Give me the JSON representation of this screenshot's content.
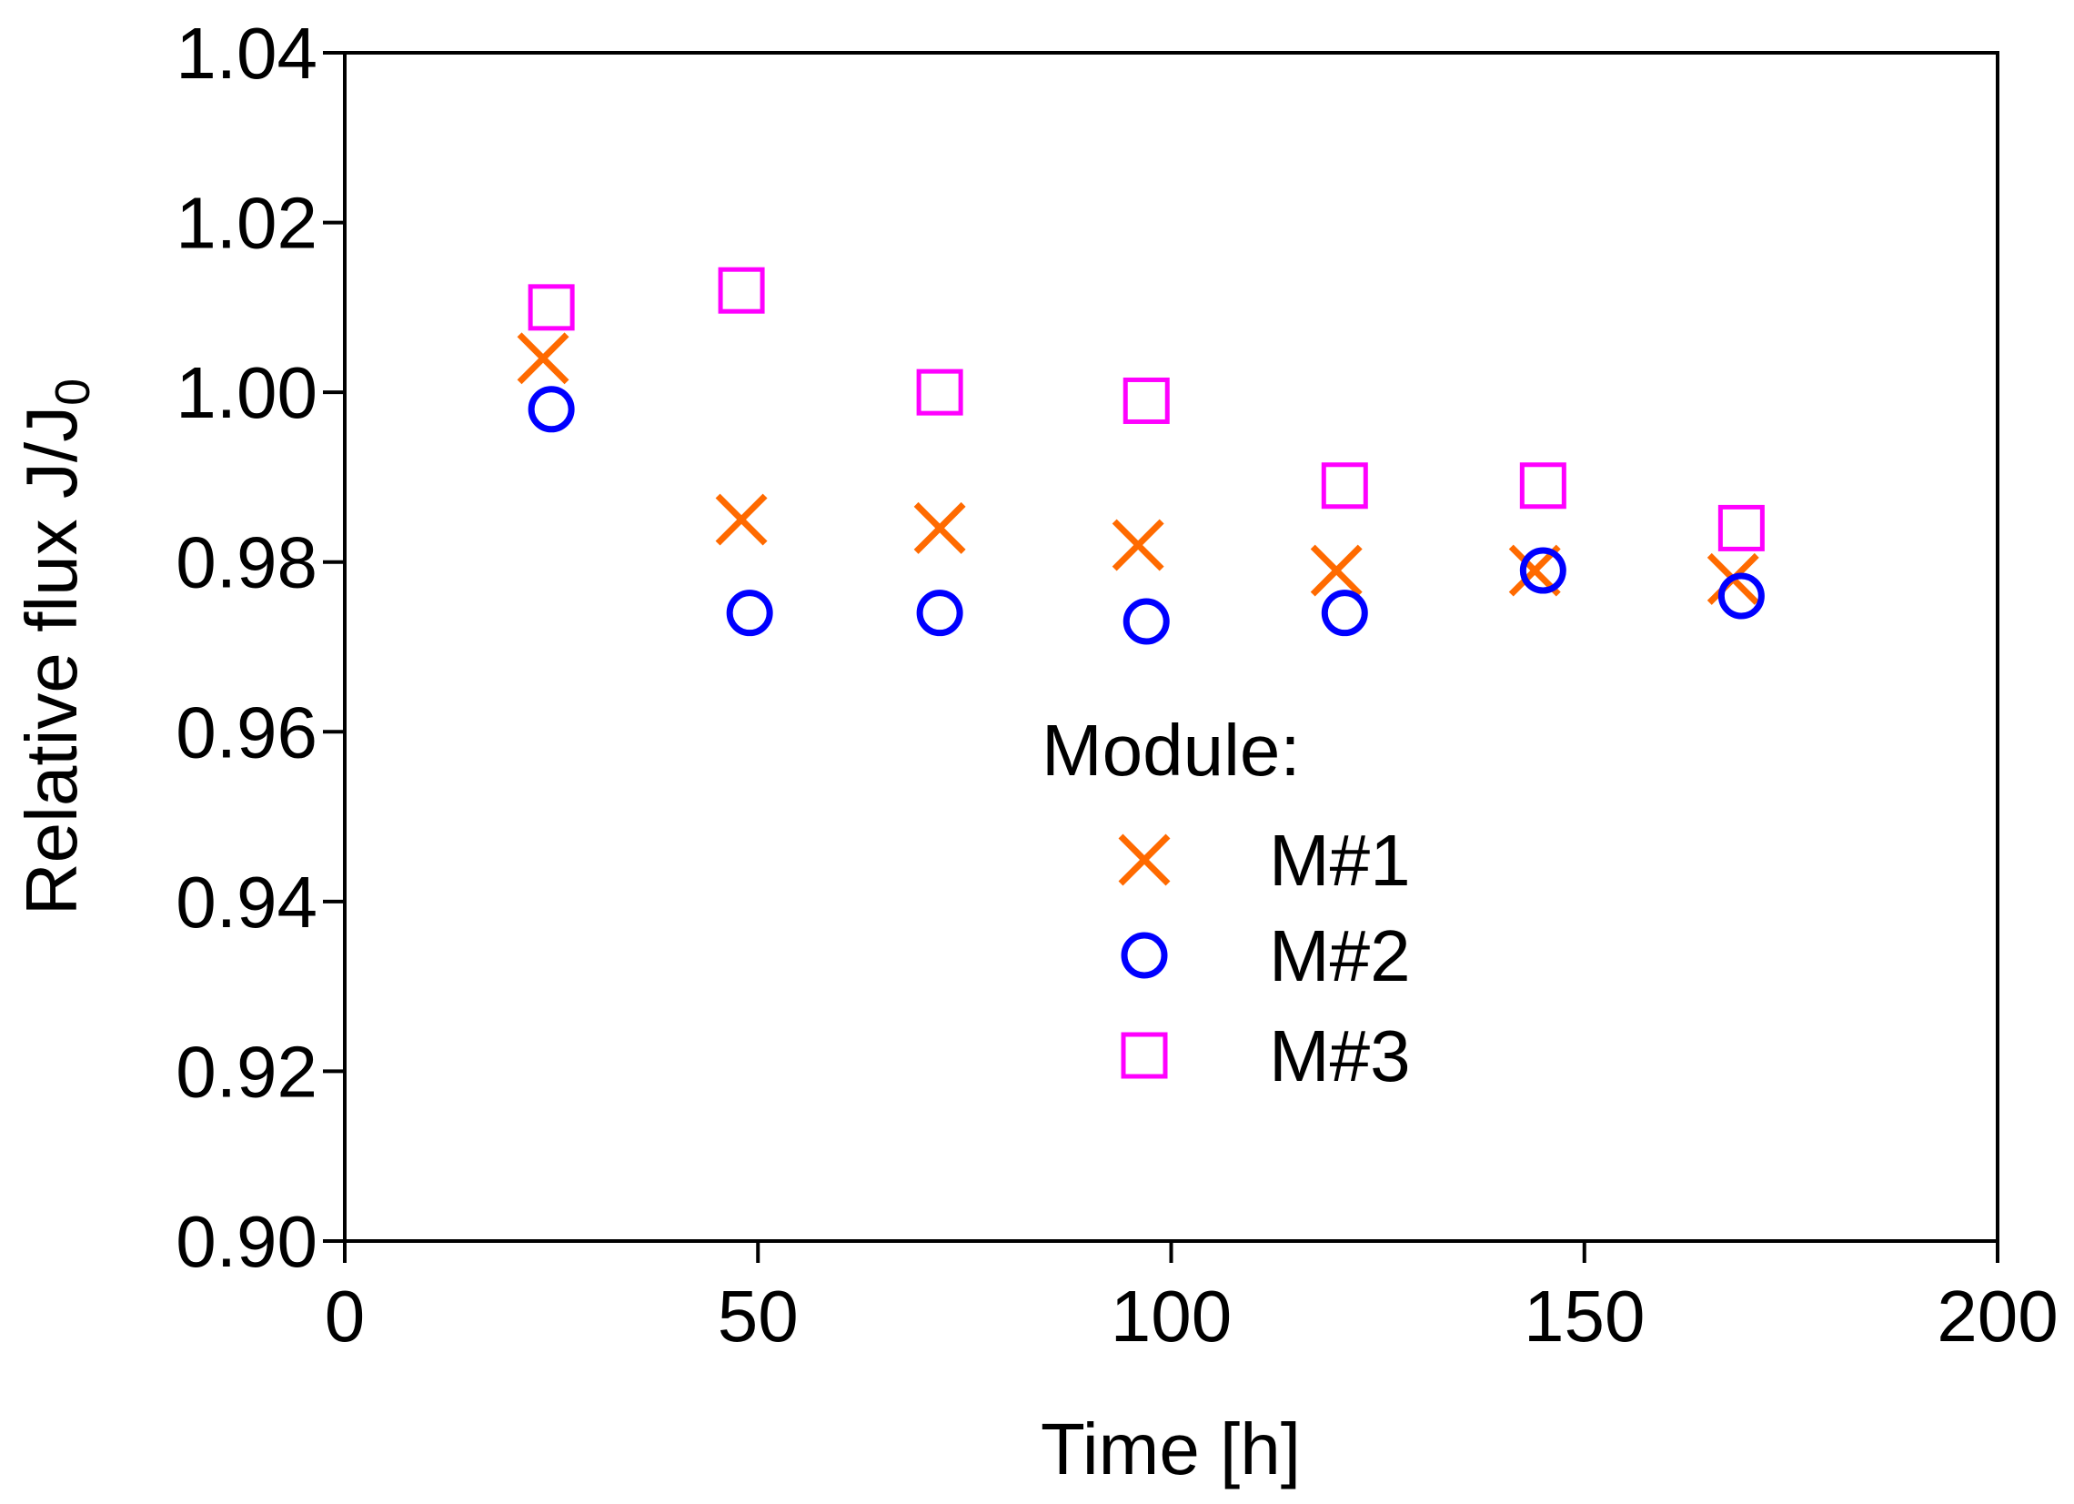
{
  "chart_data": {
    "type": "scatter",
    "title": "",
    "xlabel": "Time [h]",
    "ylabel": {
      "main": "Relative flux J/J",
      "subscript": "0"
    },
    "xlim": [
      0,
      200
    ],
    "ylim": [
      0.9,
      1.04
    ],
    "xticks": [
      0,
      50,
      100,
      150,
      200
    ],
    "xtick_labels": [
      "0",
      "50",
      "100",
      "150",
      "200"
    ],
    "yticks": [
      0.9,
      0.92,
      0.94,
      0.96,
      0.98,
      1.0,
      1.02,
      1.04
    ],
    "ytick_labels": [
      "0.90",
      "0.92",
      "0.94",
      "0.96",
      "0.98",
      "1.00",
      "1.02",
      "1.04"
    ],
    "grid": false,
    "legend": {
      "title": "Module:",
      "position": "center-right"
    },
    "series": [
      {
        "name": "M#1",
        "marker": "x",
        "color": "#FF6A00",
        "x": [
          24,
          48,
          72,
          96,
          120,
          144,
          168
        ],
        "y": [
          1.004,
          0.985,
          0.984,
          0.982,
          0.979,
          0.979,
          0.978
        ]
      },
      {
        "name": "M#2",
        "marker": "circle",
        "color": "#0000FF",
        "x": [
          25,
          49,
          72,
          97,
          121,
          145,
          169
        ],
        "y": [
          0.998,
          0.974,
          0.974,
          0.973,
          0.974,
          0.979,
          0.976
        ]
      },
      {
        "name": "M#3",
        "marker": "square",
        "color": "#FF00FF",
        "x": [
          25,
          48,
          72,
          97,
          121,
          145,
          169
        ],
        "y": [
          1.01,
          1.012,
          1.0,
          0.999,
          0.989,
          0.989,
          0.984
        ]
      }
    ]
  }
}
